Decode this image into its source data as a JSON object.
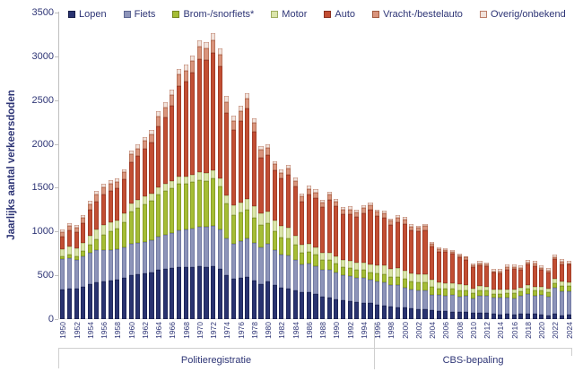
{
  "colors": {
    "text_navy": "#2E3576",
    "axis_line": "#BFBFBF",
    "baseline": "#D9D9D9",
    "bracket_line": "#CFCFCF",
    "background": "#FFFFFF"
  },
  "chart_data": {
    "type": "bar",
    "stacked": true,
    "ylabel": "Jaarlijks aantal verkeersdoden",
    "ylim": [
      0,
      3500
    ],
    "yticks": [
      0,
      500,
      1000,
      1500,
      2000,
      2500,
      3000,
      3500
    ],
    "grid": false,
    "legend_position": "top",
    "years": [
      1950,
      1951,
      1952,
      1953,
      1954,
      1955,
      1956,
      1957,
      1958,
      1959,
      1960,
      1961,
      1962,
      1963,
      1964,
      1965,
      1966,
      1967,
      1968,
      1969,
      1970,
      1971,
      1972,
      1973,
      1974,
      1975,
      1976,
      1977,
      1978,
      1979,
      1980,
      1981,
      1982,
      1983,
      1984,
      1985,
      1986,
      1987,
      1988,
      1989,
      1990,
      1991,
      1992,
      1993,
      1994,
      1995,
      1996,
      1997,
      1998,
      1999,
      2000,
      2001,
      2002,
      2003,
      2004,
      2005,
      2006,
      2007,
      2008,
      2009,
      2010,
      2011,
      2012,
      2013,
      2014,
      2015,
      2016,
      2017,
      2018,
      2019,
      2020,
      2021,
      2022,
      2023,
      2024
    ],
    "x_tick_labels": [
      "1950",
      "1952",
      "1954",
      "1956",
      "1958",
      "1960",
      "1962",
      "1964",
      "1966",
      "1968",
      "1970",
      "1972",
      "1974",
      "1976",
      "1978",
      "1980",
      "1982",
      "1984",
      "1986",
      "1988",
      "1990",
      "1992",
      "1994",
      "1996",
      "1998",
      "2000",
      "2002",
      "2004",
      "2006",
      "2008",
      "2010",
      "2012",
      "2014",
      "2016",
      "2018",
      "2020",
      "2022",
      "2024"
    ],
    "series": [
      {
        "name": "Lopen",
        "color": "#293370",
        "border": "#161D47",
        "values": [
          340,
          350,
          345,
          370,
          400,
          420,
          430,
          440,
          450,
          470,
          500,
          510,
          520,
          530,
          560,
          570,
          580,
          595,
          590,
          595,
          600,
          595,
          600,
          570,
          500,
          460,
          470,
          480,
          440,
          400,
          432,
          390,
          360,
          350,
          330,
          312,
          310,
          290,
          260,
          250,
          230,
          210,
          200,
          190,
          180,
          186,
          160,
          150,
          140,
          135,
          130,
          120,
          115,
          110,
          100,
          91,
          88,
          86,
          80,
          78,
          72,
          70,
          68,
          58,
          56,
          57,
          51,
          58,
          59,
          59,
          48,
          46,
          63,
          46,
          50
        ]
      },
      {
        "name": "Fiets",
        "color": "#8D94B9",
        "border": "#5C6591",
        "values": [
          345,
          350,
          330,
          345,
          360,
          365,
          360,
          350,
          345,
          350,
          360,
          360,
          365,
          370,
          380,
          390,
          400,
          420,
          430,
          440,
          450,
          455,
          465,
          450,
          420,
          400,
          420,
          440,
          430,
          420,
          426,
          400,
          380,
          380,
          350,
          308,
          320,
          315,
          300,
          310,
          304,
          290,
          290,
          285,
          290,
          260,
          270,
          270,
          250,
          255,
          233,
          220,
          215,
          220,
          180,
          181,
          181,
          189,
          181,
          185,
          162,
          200,
          200,
          184,
          185,
          185,
          189,
          206,
          228,
          203,
          229,
          207,
          291,
          270,
          270
        ]
      },
      {
        "name": "Brom-/snorfiets*",
        "color": "#A5BD35",
        "border": "#75871F",
        "values": [
          27,
          35,
          45,
          60,
          90,
          130,
          175,
          210,
          240,
          290,
          370,
          400,
          430,
          450,
          480,
          500,
          510,
          530,
          525,
          530,
          540,
          530,
          545,
          500,
          400,
          330,
          330,
          330,
          290,
          250,
          240,
          210,
          195,
          190,
          165,
          140,
          140,
          130,
          115,
          115,
          100,
          95,
          95,
          90,
          92,
          90,
          95,
          95,
          90,
          95,
          95,
          95,
          90,
          90,
          85,
          75,
          75,
          70,
          70,
          68,
          60,
          58,
          55,
          50,
          48,
          52,
          55,
          51,
          57,
          62,
          55,
          51,
          58,
          66,
          55
        ]
      },
      {
        "name": "Motor",
        "color": "#DBE5AB",
        "border": "#9EAD5F",
        "values": [
          85,
          90,
          90,
          95,
          105,
          110,
          110,
          105,
          95,
          95,
          95,
          90,
          88,
          85,
          85,
          85,
          85,
          85,
          85,
          85,
          88,
          88,
          90,
          92,
          95,
          110,
          115,
          125,
          130,
          135,
          135,
          130,
          125,
          120,
          110,
          85,
          85,
          82,
          80,
          85,
          82,
          80,
          82,
          82,
          88,
          90,
          90,
          95,
          90,
          95,
          92,
          90,
          90,
          95,
          90,
          70,
          70,
          70,
          65,
          60,
          50,
          48,
          45,
          43,
          45,
          47,
          44,
          44,
          43,
          44,
          41,
          45,
          48,
          44,
          45
        ]
      },
      {
        "name": "Auto",
        "color": "#C24E33",
        "border": "#8B3020",
        "values": [
          150,
          185,
          180,
          225,
          290,
          320,
          350,
          360,
          360,
          390,
          470,
          500,
          540,
          580,
          700,
          760,
          860,
          1030,
          1080,
          1160,
          1290,
          1290,
          1340,
          1270,
          940,
          860,
          930,
          1030,
          850,
          640,
          640,
          570,
          550,
          610,
          560,
          500,
          570,
          570,
          520,
          600,
          570,
          520,
          530,
          520,
          560,
          620,
          560,
          550,
          510,
          530,
          540,
          490,
          490,
          500,
          370,
          350,
          350,
          330,
          310,
          290,
          246,
          240,
          235,
          193,
          187,
          224,
          231,
          201,
          233,
          237,
          195,
          182,
          225,
          200,
          200
        ]
      },
      {
        "name": "Vracht-/bestelauto",
        "color": "#D9947C",
        "border": "#A25A3F",
        "values": [
          50,
          55,
          55,
          62,
          68,
          75,
          80,
          80,
          78,
          80,
          85,
          88,
          90,
          95,
          110,
          115,
          120,
          130,
          130,
          135,
          140,
          138,
          145,
          140,
          125,
          105,
          110,
          115,
          100,
          85,
          78,
          67,
          62,
          66,
          62,
          58,
          62,
          60,
          56,
          60,
          56,
          54,
          56,
          54,
          56,
          56,
          50,
          48,
          45,
          48,
          48,
          44,
          45,
          46,
          34,
          30,
          27,
          26,
          24,
          21,
          24,
          22,
          22,
          20,
          22,
          25,
          26,
          23,
          26,
          25,
          20,
          24,
          24,
          28,
          20
        ]
      },
      {
        "name": "Overig/onbekend",
        "color": "#F1E3DC",
        "border": "#BC7E68",
        "values": [
          24,
          32,
          28,
          35,
          37,
          41,
          43,
          38,
          36,
          39,
          46,
          49,
          49,
          52,
          60,
          59,
          65,
          68,
          67,
          68,
          73,
          71,
          79,
          70,
          66,
          56,
          57,
          63,
          54,
          47,
          45,
          40,
          38,
          40,
          38,
          35,
          40,
          38,
          35,
          36,
          34,
          32,
          32,
          31,
          32,
          32,
          26,
          27,
          24,
          28,
          28,
          24,
          24,
          27,
          22,
          20,
          20,
          20,
          20,
          18,
          26,
          23,
          25,
          22,
          27,
          31,
          33,
          30,
          32,
          31,
          22,
          27,
          28,
          30,
          22
        ]
      }
    ],
    "annotations": [
      {
        "label": "Politieregistratie",
        "span_years": [
          1950,
          1995
        ]
      },
      {
        "label": "CBS-bepaling",
        "span_years": [
          1996,
          2024
        ]
      }
    ]
  }
}
